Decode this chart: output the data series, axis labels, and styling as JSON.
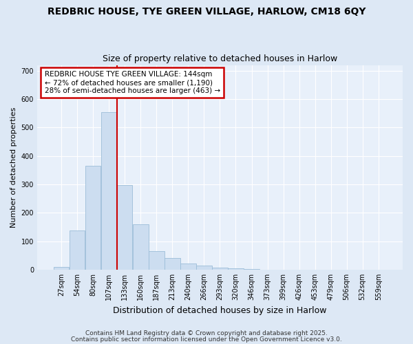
{
  "title1": "REDBRIC HOUSE, TYE GREEN VILLAGE, HARLOW, CM18 6QY",
  "title2": "Size of property relative to detached houses in Harlow",
  "xlabel": "Distribution of detached houses by size in Harlow",
  "ylabel": "Number of detached properties",
  "bar_labels": [
    "27sqm",
    "54sqm",
    "80sqm",
    "107sqm",
    "133sqm",
    "160sqm",
    "187sqm",
    "213sqm",
    "240sqm",
    "266sqm",
    "293sqm",
    "320sqm",
    "346sqm",
    "373sqm",
    "399sqm",
    "426sqm",
    "453sqm",
    "479sqm",
    "506sqm",
    "532sqm",
    "559sqm"
  ],
  "bar_values": [
    10,
    137,
    365,
    555,
    298,
    160,
    65,
    40,
    22,
    15,
    8,
    5,
    2,
    0,
    0,
    0,
    0,
    0,
    0,
    0,
    0
  ],
  "bar_color": "#ccddf0",
  "bar_edge_color": "#9bbdd8",
  "bar_width": 0.97,
  "ylim": [
    0,
    720
  ],
  "yticks": [
    0,
    100,
    200,
    300,
    400,
    500,
    600,
    700
  ],
  "red_line_bin_index": 4,
  "red_line_color": "#cc0000",
  "annotation_line1": "REDBRIC HOUSE TYE GREEN VILLAGE: 144sqm",
  "annotation_line2": "← 72% of detached houses are smaller (1,190)",
  "annotation_line3": "28% of semi-detached houses are larger (463) →",
  "annotation_box_color": "#ffffff",
  "annotation_box_edge": "#cc0000",
  "footer1": "Contains HM Land Registry data © Crown copyright and database right 2025.",
  "footer2": "Contains public sector information licensed under the Open Government Licence v3.0.",
  "bg_color": "#dde8f5",
  "plot_bg_color": "#e8f0fa",
  "title1_fontsize": 10,
  "title2_fontsize": 9,
  "xlabel_fontsize": 9,
  "ylabel_fontsize": 8,
  "tick_fontsize": 7,
  "footer_fontsize": 6.5
}
